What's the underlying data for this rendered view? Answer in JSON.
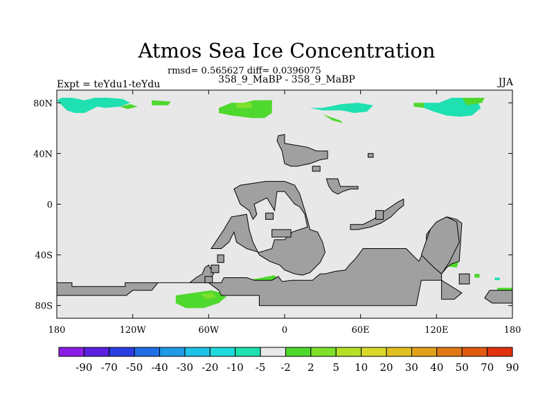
{
  "chart_data": {
    "type": "heatmap",
    "title": "Atmos Sea Ice Concentration",
    "stats_text": "rmsd= 0.565627 diff= 0.0396075",
    "subtitle": "358_9_MaBP - 358_9_MaBP",
    "left_label": "Expt = teYdu1-teYdu",
    "right_label": "JJA",
    "xlim": [
      -180,
      180
    ],
    "ylim": [
      -90,
      90
    ],
    "x_ticks": [
      {
        "value": -180,
        "label": "180"
      },
      {
        "value": -120,
        "label": "120W"
      },
      {
        "value": -60,
        "label": "60W"
      },
      {
        "value": 0,
        "label": "0"
      },
      {
        "value": 60,
        "label": "60E"
      },
      {
        "value": 120,
        "label": "120E"
      },
      {
        "value": 180,
        "label": "180"
      }
    ],
    "y_ticks": [
      {
        "value": 80,
        "label": "80N"
      },
      {
        "value": 40,
        "label": "40N"
      },
      {
        "value": 0,
        "label": "0"
      },
      {
        "value": -40,
        "label": "40S"
      },
      {
        "value": -80,
        "label": "80S"
      }
    ],
    "colorbar_labels": [
      "-90",
      "-70",
      "-50",
      "-40",
      "-30",
      "-20",
      "-10",
      "-5",
      "-2",
      "2",
      "5",
      "10",
      "20",
      "30",
      "40",
      "50",
      "70",
      "90"
    ],
    "colorbar_colors": [
      "#8b1ee6",
      "#5a20e0",
      "#2a3ee0",
      "#1f6ee6",
      "#1e9ae6",
      "#1ec0e6",
      "#1ed9d9",
      "#1ee0b0",
      "#e8e8e8",
      "#4fd82e",
      "#7ee02a",
      "#b5e028",
      "#d9d92a",
      "#e0c020",
      "#e0a01a",
      "#e07818",
      "#e05a10",
      "#e03210"
    ],
    "background_color": "#e8e8e8",
    "land_color": "#a0a0a0",
    "land": [
      [
        [
          -180,
          -62
        ],
        [
          -168,
          -62
        ],
        [
          -168,
          -65
        ],
        [
          -126,
          -65
        ],
        [
          -126,
          -62
        ],
        [
          -75,
          -62
        ],
        [
          -70,
          -58
        ],
        [
          -65,
          -55
        ],
        [
          -63,
          -50
        ],
        [
          -60,
          -48
        ],
        [
          -56,
          -55
        ],
        [
          -60,
          -60
        ],
        [
          -63,
          -62
        ],
        [
          -50,
          -62
        ],
        [
          -48,
          -58
        ],
        [
          -30,
          -58
        ],
        [
          -24,
          -60
        ],
        [
          -10,
          -60
        ],
        [
          -5,
          -57
        ],
        [
          -2,
          -61
        ],
        [
          6,
          -60
        ],
        [
          22,
          -60
        ],
        [
          28,
          -55
        ],
        [
          32,
          -55
        ],
        [
          40,
          -53
        ],
        [
          48,
          -52
        ],
        [
          52,
          -47
        ],
        [
          56,
          -43
        ],
        [
          62,
          -35
        ],
        [
          96,
          -35
        ],
        [
          106,
          -45
        ],
        [
          112,
          -34
        ],
        [
          112,
          -24
        ],
        [
          115,
          -20
        ],
        [
          120,
          -14
        ],
        [
          128,
          -10
        ],
        [
          136,
          -12
        ],
        [
          140,
          -15
        ],
        [
          138,
          -45
        ],
        [
          132,
          -47
        ],
        [
          128,
          -50
        ],
        [
          124,
          -55
        ],
        [
          124,
          -75
        ],
        [
          134,
          -75
        ],
        [
          140,
          -70
        ],
        [
          132,
          -65
        ],
        [
          124,
          -60
        ],
        [
          108,
          -60
        ],
        [
          104,
          -80
        ],
        [
          -20,
          -80
        ],
        [
          -20,
          -72
        ],
        [
          -50,
          -72
        ],
        [
          -52,
          -68
        ],
        [
          -60,
          -62
        ],
        [
          -100,
          -62
        ],
        [
          -105,
          -68
        ],
        [
          -120,
          -68
        ],
        [
          -125,
          -72
        ],
        [
          -180,
          -72
        ]
      ],
      [
        [
          -58,
          -35
        ],
        [
          -48,
          -20
        ],
        [
          -42,
          -10
        ],
        [
          -30,
          -8
        ],
        [
          -28,
          -20
        ],
        [
          -25,
          -30
        ],
        [
          -20,
          -40
        ],
        [
          -12,
          -45
        ],
        [
          -4,
          -48
        ],
        [
          0,
          -52
        ],
        [
          8,
          -55
        ],
        [
          14,
          -56
        ],
        [
          20,
          -54
        ],
        [
          24,
          -50
        ],
        [
          28,
          -46
        ],
        [
          32,
          -38
        ],
        [
          30,
          -30
        ],
        [
          26,
          -22
        ],
        [
          20,
          -20
        ],
        [
          18,
          -12
        ],
        [
          16,
          -5
        ],
        [
          12,
          8
        ],
        [
          8,
          15
        ],
        [
          0,
          18
        ],
        [
          -15,
          18
        ],
        [
          -28,
          16
        ],
        [
          -35,
          15
        ],
        [
          -40,
          12
        ],
        [
          -35,
          0
        ],
        [
          -28,
          -5
        ],
        [
          -25,
          -12
        ],
        [
          -22,
          -8
        ],
        [
          -24,
          0
        ],
        [
          -14,
          5
        ],
        [
          -8,
          -5
        ],
        [
          -6,
          10
        ],
        [
          0,
          10
        ],
        [
          8,
          0
        ],
        [
          12,
          -2
        ],
        [
          16,
          -8
        ],
        [
          18,
          -18
        ],
        [
          6,
          -22
        ],
        [
          0,
          -28
        ],
        [
          -8,
          -28
        ],
        [
          -10,
          -35
        ],
        [
          -20,
          -38
        ],
        [
          -30,
          -35
        ],
        [
          -38,
          -30
        ],
        [
          -40,
          -22
        ],
        [
          -44,
          -30
        ],
        [
          -50,
          -35
        ]
      ],
      [
        [
          -5,
          54
        ],
        [
          0,
          55
        ],
        [
          0,
          48
        ],
        [
          18,
          45
        ],
        [
          25,
          42
        ],
        [
          34,
          42
        ],
        [
          34,
          36
        ],
        [
          28,
          35
        ],
        [
          20,
          32
        ],
        [
          10,
          30
        ],
        [
          5,
          30
        ],
        [
          0,
          32
        ],
        [
          -2,
          42
        ],
        [
          -6,
          50
        ]
      ],
      [
        [
          33,
          20
        ],
        [
          42,
          20
        ],
        [
          44,
          14
        ],
        [
          58,
          14
        ],
        [
          58,
          12
        ],
        [
          52,
          12
        ],
        [
          46,
          10
        ],
        [
          42,
          8
        ],
        [
          38,
          10
        ],
        [
          35,
          14
        ]
      ],
      [
        [
          52,
          -16
        ],
        [
          62,
          -16
        ],
        [
          70,
          -12
        ],
        [
          78,
          -6
        ],
        [
          84,
          -2
        ],
        [
          90,
          2
        ],
        [
          94,
          4
        ],
        [
          94,
          -1
        ],
        [
          90,
          -4
        ],
        [
          84,
          -10
        ],
        [
          76,
          -15
        ],
        [
          68,
          -18
        ],
        [
          58,
          -20
        ],
        [
          52,
          -20
        ]
      ],
      [
        [
          115,
          -20
        ],
        [
          108,
          -40
        ],
        [
          118,
          -50
        ],
        [
          124,
          -55
        ],
        [
          130,
          -46
        ],
        [
          138,
          -30
        ],
        [
          136,
          -14
        ],
        [
          128,
          -10
        ],
        [
          120,
          -14
        ]
      ],
      [
        [
          -10,
          -20
        ],
        [
          5,
          -20
        ],
        [
          5,
          -26
        ],
        [
          -10,
          -26
        ]
      ],
      [
        [
          22,
          30
        ],
        [
          28,
          30
        ],
        [
          28,
          26
        ],
        [
          22,
          26
        ]
      ],
      [
        [
          72,
          -5
        ],
        [
          78,
          -5
        ],
        [
          78,
          -12
        ],
        [
          72,
          -12
        ]
      ],
      [
        [
          -15,
          -7
        ],
        [
          -9,
          -7
        ],
        [
          -9,
          -12
        ],
        [
          -15,
          -12
        ]
      ],
      [
        [
          138,
          -55
        ],
        [
          146,
          -55
        ],
        [
          146,
          -63
        ],
        [
          138,
          -63
        ]
      ],
      [
        [
          162,
          -68
        ],
        [
          180,
          -68
        ],
        [
          180,
          -78
        ],
        [
          164,
          -78
        ],
        [
          158,
          -74
        ]
      ],
      [
        [
          -63,
          -57
        ],
        [
          -57,
          -57
        ],
        [
          -57,
          -62
        ],
        [
          -63,
          -62
        ]
      ],
      [
        [
          -58,
          -48
        ],
        [
          -52,
          -48
        ],
        [
          -52,
          -54
        ],
        [
          -58,
          -54
        ]
      ],
      [
        [
          -53,
          -40
        ],
        [
          -48,
          -40
        ],
        [
          -48,
          -46
        ],
        [
          -53,
          -46
        ]
      ],
      [
        [
          66,
          40
        ],
        [
          70,
          40
        ],
        [
          70,
          37
        ],
        [
          66,
          37
        ]
      ]
    ],
    "patches": [
      {
        "bin": "-5",
        "points": [
          [
            -180,
            82
          ],
          [
            -176,
            84
          ],
          [
            -168,
            84
          ],
          [
            -158,
            82
          ],
          [
            -150,
            84
          ],
          [
            -140,
            84
          ],
          [
            -128,
            83
          ],
          [
            -122,
            80
          ],
          [
            -130,
            77
          ],
          [
            -142,
            76
          ],
          [
            -148,
            77
          ],
          [
            -158,
            72
          ],
          [
            -166,
            72
          ],
          [
            -172,
            74
          ],
          [
            -176,
            78
          ]
        ]
      },
      {
        "bin": "-5",
        "points": [
          [
            20,
            76
          ],
          [
            30,
            76
          ],
          [
            45,
            79
          ],
          [
            58,
            80
          ],
          [
            70,
            78
          ],
          [
            65,
            73
          ],
          [
            55,
            72
          ],
          [
            45,
            74
          ],
          [
            30,
            74
          ]
        ]
      },
      {
        "bin": "-5",
        "points": [
          [
            110,
            80
          ],
          [
            122,
            80
          ],
          [
            132,
            84
          ],
          [
            142,
            84
          ],
          [
            152,
            82
          ],
          [
            155,
            76
          ],
          [
            148,
            70
          ],
          [
            138,
            69
          ],
          [
            128,
            70
          ],
          [
            118,
            73
          ],
          [
            110,
            76
          ]
        ]
      },
      {
        "bin": "2",
        "points": [
          [
            -42,
            80
          ],
          [
            -32,
            80
          ],
          [
            -24,
            82
          ],
          [
            -10,
            82
          ],
          [
            -10,
            72
          ],
          [
            -16,
            68
          ],
          [
            -26,
            68
          ],
          [
            -42,
            70
          ],
          [
            -52,
            72
          ],
          [
            -52,
            76
          ]
        ]
      },
      {
        "bin": "2",
        "points": [
          [
            -105,
            82
          ],
          [
            -90,
            81
          ],
          [
            -92,
            78
          ],
          [
            -105,
            78
          ]
        ]
      },
      {
        "bin": "2",
        "points": [
          [
            -130,
            77
          ],
          [
            -122,
            79
          ],
          [
            -116,
            77
          ],
          [
            -124,
            75
          ]
        ]
      },
      {
        "bin": "2",
        "points": [
          [
            30,
            71
          ],
          [
            44,
            66
          ],
          [
            46,
            64
          ],
          [
            38,
            66
          ]
        ]
      },
      {
        "bin": "2",
        "points": [
          [
            102,
            80
          ],
          [
            110,
            80
          ],
          [
            110,
            76
          ],
          [
            102,
            77
          ]
        ]
      },
      {
        "bin": "2",
        "points": [
          [
            -10,
            82
          ],
          [
            -16,
            82
          ],
          [
            -16,
            78
          ],
          [
            -10,
            79
          ]
        ]
      },
      {
        "bin": "2",
        "points": [
          [
            140,
            84
          ],
          [
            158,
            84
          ],
          [
            156,
            80
          ],
          [
            144,
            78
          ]
        ]
      },
      {
        "bin": "5",
        "points": [
          [
            -38,
            80
          ],
          [
            -26,
            80
          ],
          [
            -26,
            76
          ],
          [
            -38,
            76
          ]
        ]
      },
      {
        "bin": "2",
        "points": [
          [
            -86,
            -72
          ],
          [
            -72,
            -70
          ],
          [
            -58,
            -68
          ],
          [
            -50,
            -70
          ],
          [
            -46,
            -73
          ],
          [
            -52,
            -78
          ],
          [
            -64,
            -82
          ],
          [
            -78,
            -82
          ],
          [
            -86,
            -78
          ]
        ]
      },
      {
        "bin": "5",
        "points": [
          [
            -66,
            -71
          ],
          [
            -58,
            -70
          ],
          [
            -54,
            -73
          ],
          [
            -62,
            -75
          ]
        ]
      },
      {
        "bin": "2",
        "points": [
          [
            -30,
            -60
          ],
          [
            -18,
            -58
          ],
          [
            -8,
            -56
          ],
          [
            -4,
            -60
          ],
          [
            -12,
            -62
          ],
          [
            -24,
            -62
          ]
        ]
      },
      {
        "bin": "2",
        "points": [
          [
            130,
            -45
          ],
          [
            138,
            -44
          ],
          [
            136,
            -50
          ],
          [
            128,
            -49
          ]
        ]
      },
      {
        "bin": "2",
        "points": [
          [
            168,
            -66
          ],
          [
            180,
            -66
          ],
          [
            180,
            -70
          ],
          [
            168,
            -69
          ]
        ]
      },
      {
        "bin": "2",
        "points": [
          [
            -180,
            -66
          ],
          [
            -176,
            -66
          ],
          [
            -176,
            -72
          ],
          [
            -180,
            -72
          ]
        ]
      },
      {
        "bin": "2",
        "points": [
          [
            150,
            -55
          ],
          [
            154,
            -55
          ],
          [
            154,
            -58
          ],
          [
            150,
            -58
          ]
        ]
      },
      {
        "bin": "-5",
        "points": [
          [
            166,
            -58
          ],
          [
            170,
            -58
          ],
          [
            170,
            -60
          ],
          [
            166,
            -60
          ]
        ]
      }
    ]
  }
}
